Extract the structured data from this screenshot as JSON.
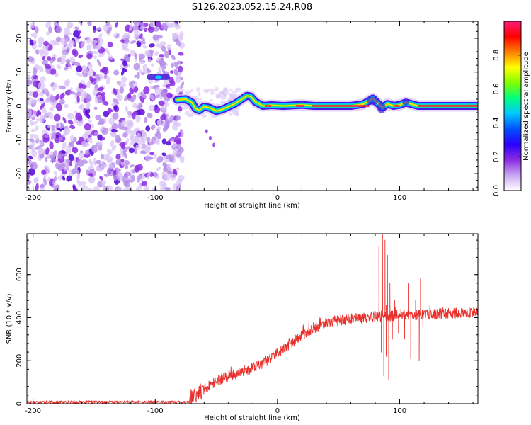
{
  "title": "S126.2023.052.15.24.R08",
  "colors": {
    "trace": "#e8312c",
    "axes": "#000000"
  },
  "chart_data": [
    {
      "type": "heatmap",
      "xlabel": "Height of straight line (km)",
      "ylabel": "Frequency (Hz)",
      "xlim": [
        -205,
        164
      ],
      "ylim": [
        -25,
        25
      ],
      "xticks": [
        -200,
        -100,
        0,
        100
      ],
      "yticks": [
        -20,
        -10,
        0,
        10,
        20
      ],
      "colorbar": {
        "label": "Normalized spectral amplitude",
        "range": [
          0,
          1
        ],
        "ticks": [
          0.0,
          0.2,
          0.4,
          0.6,
          0.8
        ],
        "colormap": [
          "#ffffff",
          "#c9a6f2",
          "#8a2be2",
          "#2a00ff",
          "#0050ff",
          "#00c8ff",
          "#00ff80",
          "#80ff00",
          "#ffff00",
          "#ff8000",
          "#ff0000",
          "#ff1a7a"
        ]
      },
      "features": {
        "noise_region_x": [
          -205,
          -78
        ],
        "side_blob": {
          "x": [
            -107,
            -88
          ],
          "freq": 8.5
        },
        "main_trace": [
          [
            -82,
            1.8
          ],
          [
            -75,
            2.0
          ],
          [
            -70,
            1.0
          ],
          [
            -67,
            -0.8
          ],
          [
            -64,
            -1.3
          ],
          [
            -60,
            -0.2
          ],
          [
            -55,
            -0.6
          ],
          [
            -50,
            -1.5
          ],
          [
            -45,
            -1.0
          ],
          [
            -40,
            -0.2
          ],
          [
            -35,
            0.6
          ],
          [
            -30,
            1.8
          ],
          [
            -25,
            3.0
          ],
          [
            -22,
            2.8
          ],
          [
            -18,
            1.2
          ],
          [
            -12,
            0.0
          ],
          [
            -5,
            0.2
          ],
          [
            5,
            0.0
          ],
          [
            20,
            0.3
          ],
          [
            30,
            0.0
          ],
          [
            60,
            0.0
          ],
          [
            70,
            0.5
          ],
          [
            75,
            1.5
          ],
          [
            78,
            2.2
          ],
          [
            82,
            0.8
          ],
          [
            86,
            -0.5
          ],
          [
            90,
            0.6
          ],
          [
            95,
            0.0
          ],
          [
            100,
            0.3
          ],
          [
            105,
            1.0
          ],
          [
            110,
            0.5
          ],
          [
            115,
            0.0
          ],
          [
            130,
            0.0
          ],
          [
            164,
            0.0
          ]
        ],
        "trail_points": [
          [
            -58,
            -7.5
          ],
          [
            -55,
            -9.5
          ],
          [
            -52,
            -11.5
          ]
        ]
      }
    },
    {
      "type": "line",
      "xlabel": "Height of straight line (km)",
      "ylabel": "SNR (10 * v/v)",
      "xlim": [
        -205,
        164
      ],
      "ylim": [
        0,
        790
      ],
      "xticks": [
        -200,
        -100,
        0,
        100
      ],
      "yticks": [
        0,
        200,
        400,
        600
      ],
      "trend": [
        [
          -205,
          8
        ],
        [
          -72,
          8
        ],
        [
          -68,
          35
        ],
        [
          -60,
          70
        ],
        [
          -50,
          105
        ],
        [
          -40,
          130
        ],
        [
          -30,
          145
        ],
        [
          -20,
          165
        ],
        [
          -10,
          195
        ],
        [
          0,
          235
        ],
        [
          10,
          275
        ],
        [
          20,
          315
        ],
        [
          30,
          350
        ],
        [
          40,
          375
        ],
        [
          50,
          388
        ],
        [
          60,
          395
        ],
        [
          70,
          400
        ],
        [
          80,
          405
        ],
        [
          100,
          410
        ],
        [
          120,
          415
        ],
        [
          140,
          420
        ],
        [
          164,
          425
        ]
      ],
      "spikes": [
        [
          83,
          730
        ],
        [
          85,
          240
        ],
        [
          86,
          790
        ],
        [
          87,
          130
        ],
        [
          88,
          760
        ],
        [
          89,
          220
        ],
        [
          90,
          690
        ],
        [
          91,
          110
        ],
        [
          92,
          560
        ],
        [
          94,
          300
        ],
        [
          96,
          480
        ],
        [
          99,
          330
        ],
        [
          101,
          440
        ],
        [
          104,
          300
        ],
        [
          107,
          560
        ],
        [
          109,
          210
        ],
        [
          113,
          480
        ],
        [
          116,
          200
        ],
        [
          117,
          580
        ],
        [
          119,
          360
        ]
      ],
      "noise": {
        "pre_amplitude": 6,
        "post_amplitude": 25,
        "seed": 17
      }
    }
  ]
}
